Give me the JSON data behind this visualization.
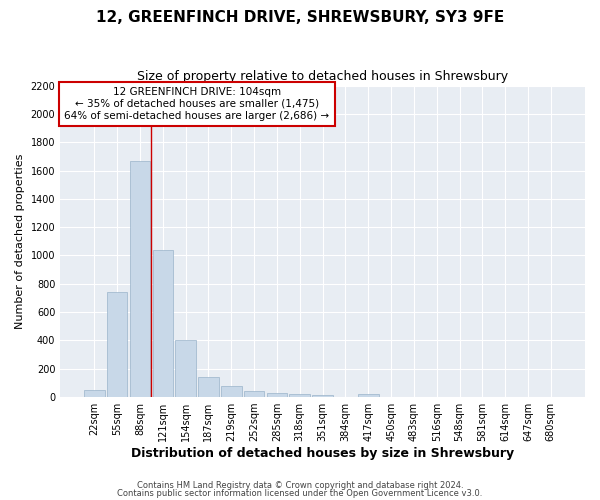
{
  "title": "12, GREENFINCH DRIVE, SHREWSBURY, SY3 9FE",
  "subtitle": "Size of property relative to detached houses in Shrewsbury",
  "xlabel": "Distribution of detached houses by size in Shrewsbury",
  "ylabel": "Number of detached properties",
  "bin_labels": [
    "22sqm",
    "55sqm",
    "88sqm",
    "121sqm",
    "154sqm",
    "187sqm",
    "219sqm",
    "252sqm",
    "285sqm",
    "318sqm",
    "351sqm",
    "384sqm",
    "417sqm",
    "450sqm",
    "483sqm",
    "516sqm",
    "548sqm",
    "581sqm",
    "614sqm",
    "647sqm",
    "680sqm"
  ],
  "bar_values": [
    50,
    740,
    1670,
    1040,
    400,
    145,
    80,
    40,
    30,
    20,
    15,
    0,
    20,
    0,
    0,
    0,
    0,
    0,
    0,
    0,
    0
  ],
  "bar_color": "#c8d8e8",
  "bar_edge_color": "#9ab4ca",
  "ylim": [
    0,
    2200
  ],
  "yticks": [
    0,
    200,
    400,
    600,
    800,
    1000,
    1200,
    1400,
    1600,
    1800,
    2000,
    2200
  ],
  "annotation_line1": "12 GREENFINCH DRIVE: 104sqm",
  "annotation_line2": "← 35% of detached houses are smaller (1,475)",
  "annotation_line3": "64% of semi-detached houses are larger (2,686) →",
  "annotation_box_color": "#ffffff",
  "annotation_box_edge_color": "#cc0000",
  "vline_color": "#cc0000",
  "vline_x": 2.5,
  "footer_line1": "Contains HM Land Registry data © Crown copyright and database right 2024.",
  "footer_line2": "Contains public sector information licensed under the Open Government Licence v3.0.",
  "background_color": "#ffffff",
  "plot_bg_color": "#e8edf3",
  "grid_color": "#ffffff",
  "title_fontsize": 11,
  "subtitle_fontsize": 9,
  "xlabel_fontsize": 9,
  "ylabel_fontsize": 8,
  "tick_fontsize": 7,
  "footer_fontsize": 6,
  "annotation_fontsize": 7.5
}
